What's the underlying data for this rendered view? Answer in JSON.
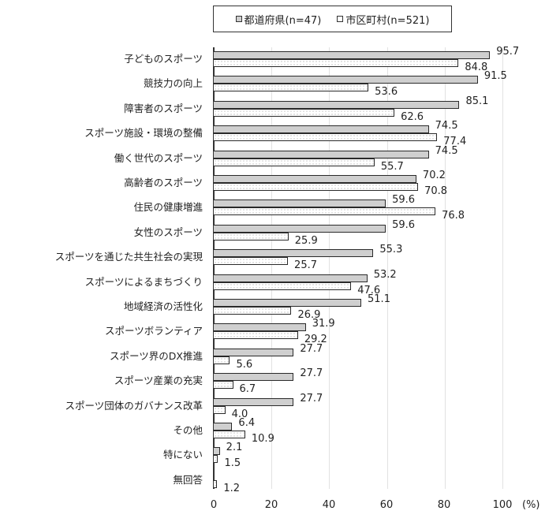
{
  "legend": {
    "series1": "都道府県(n=47)",
    "series2": "市区町村(n=521)"
  },
  "axis": {
    "ticks": [
      "0",
      "20",
      "40",
      "60",
      "80",
      "100"
    ],
    "unit": "(%)"
  },
  "chart_data": {
    "type": "bar",
    "orientation": "horizontal",
    "title": "",
    "xlabel": "(%)",
    "ylabel": "",
    "xlim": [
      0,
      100
    ],
    "grid": true,
    "legend_position": "top",
    "categories": [
      "子どものスポーツ",
      "競技力の向上",
      "障害者のスポーツ",
      "スポーツ施設・環境の整備",
      "働く世代のスポーツ",
      "高齢者のスポーツ",
      "住民の健康増進",
      "女性のスポーツ",
      "スポーツを通じた共生社会の実現",
      "スポーツによるまちづくり",
      "地域経済の活性化",
      "スポーツボランティア",
      "スポーツ界のDX推進",
      "スポーツ産業の充実",
      "スポーツ団体のガバナンス改革",
      "その他",
      "特にない",
      "無回答"
    ],
    "series": [
      {
        "name": "都道府県(n=47)",
        "values": [
          95.7,
          91.5,
          85.1,
          74.5,
          74.5,
          70.2,
          59.6,
          59.6,
          55.3,
          53.2,
          51.1,
          31.9,
          27.7,
          27.7,
          27.7,
          6.4,
          2.1,
          null
        ],
        "labels": [
          "95.7",
          "91.5",
          "85.1",
          "74.5",
          "74.5",
          "70.2",
          "59.6",
          "59.6",
          "55.3",
          "53.2",
          "51.1",
          "31.9",
          "27.7",
          "27.7",
          "27.7",
          "6.4",
          "2.1",
          ""
        ]
      },
      {
        "name": "市区町村(n=521)",
        "values": [
          84.8,
          53.6,
          62.6,
          77.4,
          55.7,
          70.8,
          76.8,
          25.9,
          25.7,
          47.6,
          26.9,
          29.2,
          5.6,
          6.7,
          4.0,
          10.9,
          1.5,
          1.2
        ],
        "labels": [
          "84.8",
          "53.6",
          "62.6",
          "77.4",
          "55.7",
          "70.8",
          "76.8",
          "25.9",
          "25.7",
          "47.6",
          "26.9",
          "29.2",
          "5.6",
          "6.7",
          "4.0",
          "10.9",
          "1.5",
          "1.2"
        ]
      }
    ]
  }
}
